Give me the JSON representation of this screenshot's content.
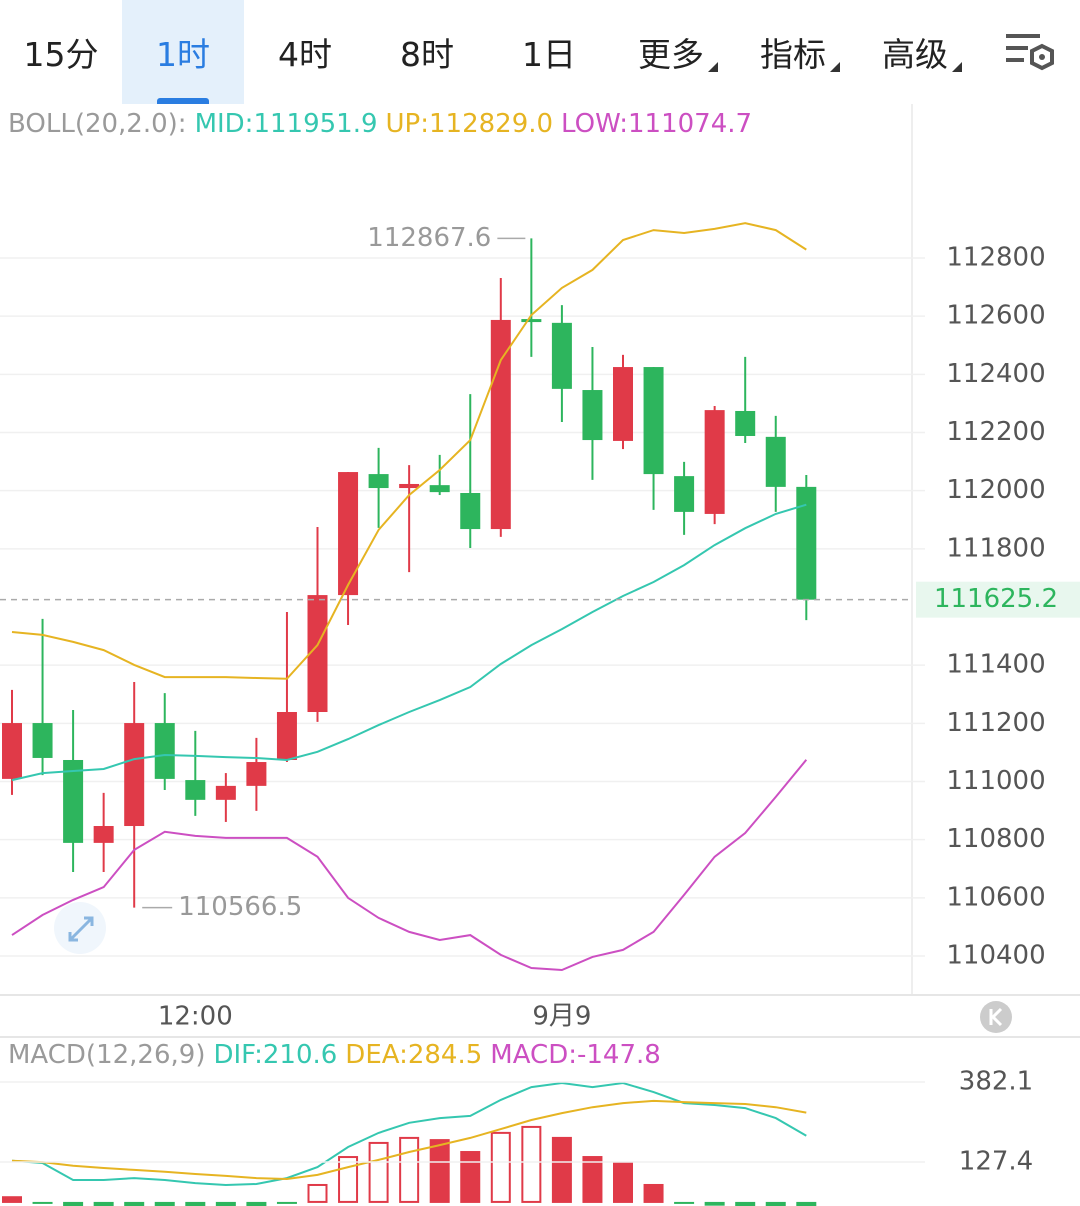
{
  "tabs": [
    "15分",
    "1时",
    "4时",
    "8时",
    "1日",
    "更多",
    "指标",
    "高级"
  ],
  "active_tab": 1,
  "chart_data": [
    {
      "type": "candlestick",
      "indicator_label": "BOLL(20,2.0):",
      "categories": [
        null,
        null,
        null,
        null,
        null,
        null,
        "12:00",
        null,
        null,
        null,
        null,
        null,
        null,
        null,
        null,
        null,
        null,
        null,
        "9月9",
        null,
        null,
        null,
        null,
        null,
        null,
        null,
        null
      ],
      "open": [
        111009,
        111201,
        111074,
        110789,
        110847,
        111201,
        111005,
        110937,
        110985,
        111074,
        111239,
        111641,
        112057,
        112009,
        112019,
        111992,
        111868,
        112590,
        112577,
        112346,
        112171,
        112425,
        112050,
        111920,
        112274,
        112185,
        112013
      ],
      "high": [
        111315,
        111559,
        111246,
        110961,
        111342,
        111304,
        111174,
        111029,
        111150,
        111583,
        111875,
        112064,
        112147,
        112088,
        112123,
        112332,
        112731,
        112867.6,
        112638,
        112494,
        112467,
        112425,
        112099,
        112291,
        112460,
        112257,
        112054
      ],
      "low": [
        110954,
        111022,
        110689,
        110689,
        110566.5,
        110971,
        110882,
        110861,
        110899,
        111067,
        111205,
        111538,
        111872,
        111720,
        111985,
        111803,
        111841,
        112460,
        112236,
        112037,
        112143,
        111934,
        111848,
        111885,
        112164,
        111927,
        111555
      ],
      "close": [
        111201,
        111081,
        110789,
        110847,
        111201,
        111009,
        110937,
        110985,
        111067,
        111239,
        111641,
        112064,
        112009,
        112023,
        111995,
        111868,
        112587,
        112583,
        112350,
        112174,
        112425,
        112057,
        111927,
        112277,
        112188,
        112013,
        111625.2
      ],
      "up_color": "#e03a48",
      "down_color": "#2db55d",
      "series": [
        {
          "name": "MID:111951.9",
          "color": "#35c7b0",
          "values": [
            111005,
            111029,
            111036,
            111043,
            111077,
            111091,
            111088,
            111084,
            111081,
            111074,
            111102,
            111146,
            111194,
            111239,
            111280,
            111325,
            111404,
            111469,
            111524,
            111583,
            111638,
            111686,
            111744,
            111813,
            111871,
            111920,
            111951.9
          ]
        },
        {
          "name": "UP:112829.0",
          "color": "#e6b422",
          "values": [
            111514,
            111504,
            111480,
            111452,
            111401,
            111359,
            111359,
            111359,
            111356,
            111353,
            111469,
            111676,
            111865,
            111985,
            112071,
            112174,
            112449,
            112604,
            112697,
            112759,
            112862,
            112896,
            112886,
            112900,
            112920,
            112896,
            112829.0
          ]
        },
        {
          "name": "LOW:111074.7",
          "color": "#cc4fc2",
          "values": [
            110472,
            110541,
            110593,
            110637,
            110765,
            110827,
            110813,
            110806,
            110806,
            110806,
            110741,
            110600,
            110531,
            110483,
            110455,
            110472,
            110404,
            110359,
            110352,
            110397,
            110421,
            110483,
            110610,
            110741,
            110823,
            110947,
            111074.7
          ]
        }
      ],
      "max_label": "112867.6",
      "min_label": "110566.5",
      "last_price": 111625.2,
      "ylim": [
        110266,
        113326
      ],
      "yticks": [
        110400,
        110600,
        110800,
        111000,
        111200,
        111400,
        111800,
        112000,
        112200,
        112400,
        112600,
        112800
      ],
      "grid": true
    },
    {
      "type": "macd",
      "indicator_label": "MACD(12,26,9)",
      "series": [
        {
          "name": "DIF:210.6",
          "color": "#35c7b0",
          "values": [
            131,
            124,
            70,
            70,
            76,
            70,
            60,
            54,
            57,
            76,
            111,
            175,
            220,
            252,
            267,
            274,
            325,
            366,
            379,
            366,
            379,
            350,
            315,
            309,
            299,
            267,
            210.6
          ]
        },
        {
          "name": "DEA:284.5",
          "color": "#e6b422",
          "values": [
            131,
            127,
            115,
            108,
            102,
            96,
            89,
            83,
            76,
            73,
            86,
            111,
            134,
            159,
            181,
            204,
            232,
            261,
            283,
            302,
            315,
            322,
            318,
            315,
            312,
            302,
            284.5
          ]
        }
      ],
      "histogram": {
        "name": "MACD:-147.8",
        "color": "#cc4fc2",
        "values": [
          15,
          -6,
          -90,
          -76,
          -52,
          -52,
          -58,
          -58,
          -38,
          -6,
          54,
          143,
          188,
          204,
          197,
          159,
          220,
          239,
          204,
          143,
          124,
          54,
          -6,
          -12,
          -26,
          -70,
          -147.8
        ]
      },
      "up_color": "#e03a48",
      "down_color": "#2db55d",
      "ylim": [
        -13,
        516
      ],
      "yticks": [
        127.4,
        382.1
      ],
      "grid": true
    }
  ]
}
